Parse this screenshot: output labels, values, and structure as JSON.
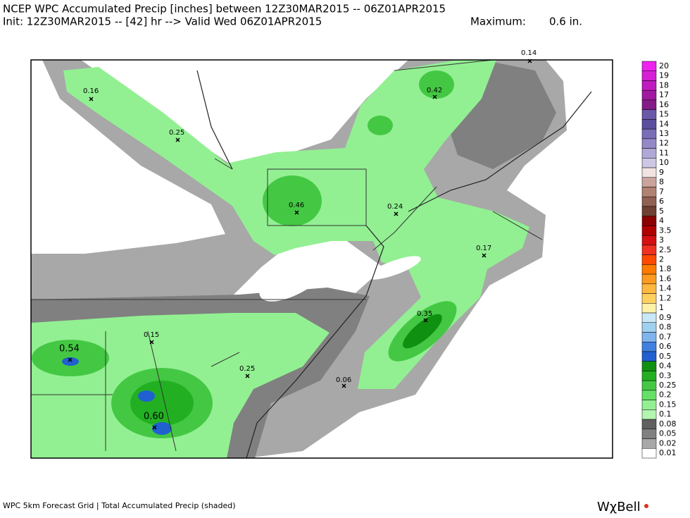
{
  "header": {
    "line1": "NCEP WPC Accumulated Precip [inches] between 12Z30MAR2015 -- 06Z01APR2015",
    "line2": "Init: 12Z30MAR2015 -- [42] hr --> Valid Wed 06Z01APR2015",
    "maximum_label": "Maximum:",
    "maximum_value": "0.6 in."
  },
  "map": {
    "points": [
      "0.16",
      "0.25",
      "0.46",
      "0.24",
      "0.42",
      "0.14",
      "0.17",
      "0.35",
      "0.06",
      "0.54",
      "0.15",
      "0.25",
      "0.60"
    ]
  },
  "legend": {
    "items": [
      {
        "label": "20",
        "color": "#ee22ee"
      },
      {
        "label": "19",
        "color": "#d61ed6"
      },
      {
        "label": "18",
        "color": "#c01bc0"
      },
      {
        "label": "17",
        "color": "#a01aa0"
      },
      {
        "label": "16",
        "color": "#861a86"
      },
      {
        "label": "15",
        "color": "#6a58a8"
      },
      {
        "label": "14",
        "color": "#5c4e9e"
      },
      {
        "label": "13",
        "color": "#7a6eb8"
      },
      {
        "label": "12",
        "color": "#9488c6"
      },
      {
        "label": "11",
        "color": "#b0a8d6"
      },
      {
        "label": "10",
        "color": "#cdc7e4"
      },
      {
        "label": "9",
        "color": "#f2e4e2"
      },
      {
        "label": "8",
        "color": "#caa49c"
      },
      {
        "label": "7",
        "color": "#b08272"
      },
      {
        "label": "6",
        "color": "#906052"
      },
      {
        "label": "5",
        "color": "#704032"
      },
      {
        "label": "4",
        "color": "#8b0000"
      },
      {
        "label": "3.5",
        "color": "#b00000"
      },
      {
        "label": "3",
        "color": "#d41010"
      },
      {
        "label": "2.5",
        "color": "#f03020"
      },
      {
        "label": "2",
        "color": "#ff4800"
      },
      {
        "label": "1.8",
        "color": "#ff7a00"
      },
      {
        "label": "1.6",
        "color": "#ff9a20"
      },
      {
        "label": "1.4",
        "color": "#ffb840"
      },
      {
        "label": "1.2",
        "color": "#ffd060"
      },
      {
        "label": "1",
        "color": "#fff2a8"
      },
      {
        "label": "0.9",
        "color": "#c8e8f8"
      },
      {
        "label": "0.8",
        "color": "#a0d0f0"
      },
      {
        "label": "0.7",
        "color": "#80b4ec"
      },
      {
        "label": "0.6",
        "color": "#4080e0"
      },
      {
        "label": "0.5",
        "color": "#2060d0"
      },
      {
        "label": "0.4",
        "color": "#109010"
      },
      {
        "label": "0.3",
        "color": "#22b022"
      },
      {
        "label": "0.25",
        "color": "#44c844"
      },
      {
        "label": "0.2",
        "color": "#66e066"
      },
      {
        "label": "0.15",
        "color": "#92f092"
      },
      {
        "label": "0.1",
        "color": "#b4f6b0"
      },
      {
        "label": "0.08",
        "color": "#606060"
      },
      {
        "label": "0.05",
        "color": "#808080"
      },
      {
        "label": "0.02",
        "color": "#a8a8a8"
      },
      {
        "label": "0.01",
        "color": "#ffffff"
      }
    ]
  },
  "footer": {
    "caption": "WPC 5km Forecast Grid | Total Accumulated Precip (shaded)",
    "logo": "WχBell"
  }
}
